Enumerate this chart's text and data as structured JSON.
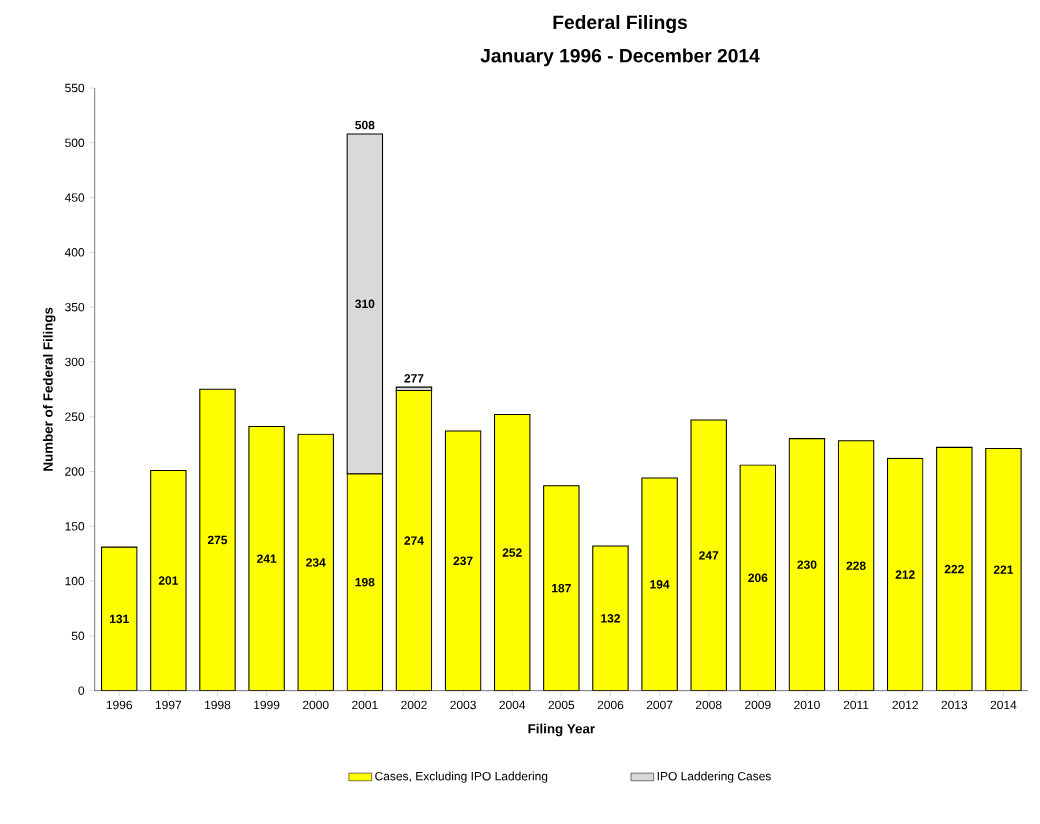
{
  "chart_data": {
    "type": "bar",
    "title": "Federal Filings",
    "subtitle": "January 1996 -  December 2014",
    "xlabel": "Filing Year",
    "ylabel": "Number of Federal Filings",
    "categories": [
      "1996",
      "1997",
      "1998",
      "1999",
      "2000",
      "2001",
      "2002",
      "2003",
      "2004",
      "2005",
      "2006",
      "2007",
      "2008",
      "2009",
      "2010",
      "2011",
      "2012",
      "2013",
      "2014"
    ],
    "stacked": true,
    "series": [
      {
        "name": "Cases, Excluding IPO Laddering",
        "color": "#ffff00",
        "values": [
          131,
          201,
          275,
          241,
          234,
          198,
          274,
          237,
          252,
          187,
          132,
          194,
          247,
          206,
          230,
          228,
          212,
          222,
          221
        ],
        "value_labels": [
          "131",
          "201",
          "275",
          "241",
          "234",
          "198",
          "274",
          "237",
          "252",
          "187",
          "132",
          "194",
          "247",
          "206",
          "230",
          "228",
          "212",
          "222",
          "221"
        ]
      },
      {
        "name": "IPO Laddering Cases",
        "color": "#d9d9d9",
        "values": [
          null,
          null,
          null,
          null,
          null,
          310,
          3,
          null,
          null,
          null,
          null,
          null,
          null,
          null,
          null,
          null,
          null,
          null,
          null
        ],
        "value_labels": [
          null,
          null,
          null,
          null,
          null,
          "310",
          null,
          null,
          null,
          null,
          null,
          null,
          null,
          null,
          null,
          null,
          null,
          null,
          null
        ]
      }
    ],
    "totals": [
      null,
      null,
      null,
      null,
      null,
      "508",
      "277",
      null,
      null,
      null,
      null,
      null,
      null,
      null,
      null,
      null,
      null,
      null,
      null
    ],
    "ylim": [
      0,
      550
    ],
    "yticks": [
      0,
      50,
      100,
      150,
      200,
      250,
      300,
      350,
      400,
      450,
      500,
      550
    ],
    "grid": false,
    "legend": "bottom"
  }
}
